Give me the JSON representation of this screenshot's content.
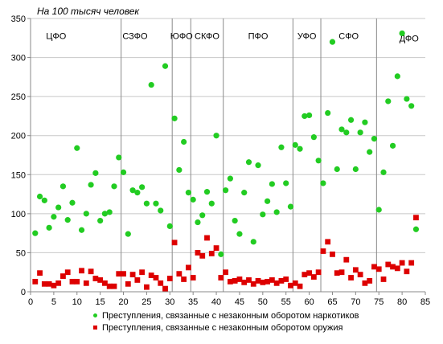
{
  "chart_data": {
    "type": "scatter",
    "title": "На 100 тысяч человек",
    "xlim": [
      0,
      85
    ],
    "ylim": [
      0,
      350
    ],
    "xticks": [
      0,
      5,
      10,
      15,
      20,
      25,
      30,
      35,
      40,
      45,
      50,
      55,
      60,
      65,
      70,
      75,
      80,
      85
    ],
    "yticks": [
      0,
      50,
      100,
      150,
      200,
      250,
      300,
      350
    ],
    "grid": "horizontal",
    "legend_position": "bottom",
    "district_dividers": [
      19.5,
      30.5,
      34.5,
      41.5,
      56.5,
      62.5,
      74.5
    ],
    "districts": [
      {
        "label": "ЦФО",
        "x": 5.5,
        "y": 328
      },
      {
        "label": "СЗФО",
        "x": 22.5,
        "y": 328
      },
      {
        "label": "ЮФО",
        "x": 32.5,
        "y": 328
      },
      {
        "label": "СКФО",
        "x": 38.0,
        "y": 328
      },
      {
        "label": "ПФО",
        "x": 49.0,
        "y": 328
      },
      {
        "label": "УФО",
        "x": 59.5,
        "y": 328
      },
      {
        "label": "СФО",
        "x": 68.5,
        "y": 328
      },
      {
        "label": "ДФО",
        "x": 81.5,
        "y": 325
      }
    ],
    "series": [
      {
        "name": "Преступления, связанные с незаконным оборотом наркотиков",
        "color": "#22cc22",
        "marker": "circle",
        "points": [
          [
            1,
            75
          ],
          [
            2,
            122
          ],
          [
            3,
            117
          ],
          [
            4,
            82
          ],
          [
            5,
            96
          ],
          [
            6,
            108
          ],
          [
            7,
            135
          ],
          [
            8,
            92
          ],
          [
            9,
            114
          ],
          [
            10,
            184
          ],
          [
            11,
            79
          ],
          [
            12,
            100
          ],
          [
            13,
            137
          ],
          [
            14,
            152
          ],
          [
            15,
            91
          ],
          [
            16,
            100
          ],
          [
            17,
            102
          ],
          [
            18,
            135
          ],
          [
            19,
            172
          ],
          [
            20,
            153
          ],
          [
            21,
            74
          ],
          [
            22,
            130
          ],
          [
            23,
            127
          ],
          [
            24,
            134
          ],
          [
            25,
            113
          ],
          [
            26,
            265
          ],
          [
            27,
            113
          ],
          [
            28,
            104
          ],
          [
            29,
            289
          ],
          [
            30,
            84
          ],
          [
            31,
            222
          ],
          [
            32,
            156
          ],
          [
            33,
            192
          ],
          [
            34,
            127
          ],
          [
            35,
            118
          ],
          [
            36,
            89
          ],
          [
            37,
            98
          ],
          [
            38,
            128
          ],
          [
            39,
            113
          ],
          [
            40,
            200
          ],
          [
            41,
            48
          ],
          [
            42,
            130
          ],
          [
            43,
            145
          ],
          [
            44,
            91
          ],
          [
            45,
            74
          ],
          [
            46,
            127
          ],
          [
            47,
            166
          ],
          [
            48,
            64
          ],
          [
            49,
            162
          ],
          [
            50,
            99
          ],
          [
            51,
            116
          ],
          [
            52,
            138
          ],
          [
            53,
            102
          ],
          [
            54,
            185
          ],
          [
            55,
            139
          ],
          [
            56,
            109
          ],
          [
            57,
            188
          ],
          [
            58,
            183
          ],
          [
            59,
            225
          ],
          [
            60,
            226
          ],
          [
            61,
            198
          ],
          [
            62,
            168
          ],
          [
            63,
            139
          ],
          [
            64,
            229
          ],
          [
            65,
            320
          ],
          [
            66,
            157
          ],
          [
            67,
            208
          ],
          [
            68,
            204
          ],
          [
            69,
            220
          ],
          [
            70,
            157
          ],
          [
            71,
            204
          ],
          [
            72,
            217
          ],
          [
            73,
            179
          ],
          [
            74,
            196
          ],
          [
            75,
            105
          ],
          [
            76,
            153
          ],
          [
            77,
            244
          ],
          [
            78,
            187
          ],
          [
            79,
            276
          ],
          [
            80,
            331
          ],
          [
            81,
            247
          ],
          [
            82,
            238
          ],
          [
            83,
            80
          ]
        ]
      },
      {
        "name": "Преступления, связанные с незаконным оборотом оружия",
        "color": "#dd0000",
        "marker": "square",
        "points": [
          [
            1,
            13
          ],
          [
            2,
            24
          ],
          [
            3,
            10
          ],
          [
            4,
            10
          ],
          [
            5,
            8
          ],
          [
            6,
            11
          ],
          [
            7,
            20
          ],
          [
            8,
            25
          ],
          [
            9,
            13
          ],
          [
            10,
            13
          ],
          [
            11,
            27
          ],
          [
            12,
            11
          ],
          [
            13,
            26
          ],
          [
            14,
            17
          ],
          [
            15,
            15
          ],
          [
            16,
            11
          ],
          [
            17,
            7
          ],
          [
            18,
            7
          ],
          [
            19,
            23
          ],
          [
            20,
            23
          ],
          [
            21,
            10
          ],
          [
            22,
            22
          ],
          [
            23,
            15
          ],
          [
            24,
            25
          ],
          [
            25,
            6
          ],
          [
            26,
            21
          ],
          [
            27,
            18
          ],
          [
            28,
            11
          ],
          [
            29,
            4
          ],
          [
            30,
            17
          ],
          [
            31,
            63
          ],
          [
            32,
            23
          ],
          [
            33,
            16
          ],
          [
            34,
            31
          ],
          [
            35,
            18
          ],
          [
            36,
            50
          ],
          [
            37,
            46
          ],
          [
            38,
            69
          ],
          [
            39,
            49
          ],
          [
            40,
            56
          ],
          [
            41,
            18
          ],
          [
            42,
            25
          ],
          [
            43,
            13
          ],
          [
            44,
            14
          ],
          [
            45,
            16
          ],
          [
            46,
            12
          ],
          [
            47,
            15
          ],
          [
            48,
            10
          ],
          [
            49,
            14
          ],
          [
            50,
            12
          ],
          [
            51,
            13
          ],
          [
            52,
            15
          ],
          [
            53,
            11
          ],
          [
            54,
            14
          ],
          [
            55,
            16
          ],
          [
            56,
            8
          ],
          [
            57,
            11
          ],
          [
            58,
            7
          ],
          [
            59,
            22
          ],
          [
            60,
            24
          ],
          [
            61,
            19
          ],
          [
            62,
            25
          ],
          [
            63,
            52
          ],
          [
            64,
            64
          ],
          [
            65,
            48
          ],
          [
            66,
            24
          ],
          [
            67,
            25
          ],
          [
            68,
            41
          ],
          [
            69,
            18
          ],
          [
            70,
            28
          ],
          [
            71,
            22
          ],
          [
            72,
            11
          ],
          [
            73,
            14
          ],
          [
            74,
            32
          ],
          [
            75,
            29
          ],
          [
            76,
            16
          ],
          [
            77,
            35
          ],
          [
            78,
            32
          ],
          [
            79,
            30
          ],
          [
            80,
            37
          ],
          [
            81,
            26
          ],
          [
            82,
            37
          ],
          [
            83,
            95
          ]
        ]
      }
    ]
  }
}
